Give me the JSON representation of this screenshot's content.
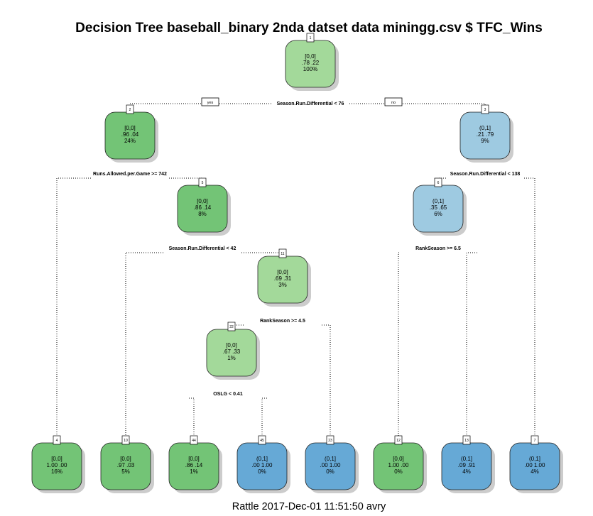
{
  "title": "Decision Tree baseball_binary 2nda datset data miningg.csv $ TFC_Wins",
  "footer": "Rattle 2017-Dec-01 11:51:50 avry",
  "colors": {
    "light_green": "#a3d99a",
    "green": "#73c476",
    "light_blue": "#9ecae1",
    "blue": "#66a9d6",
    "shadow": "#cccccc",
    "edge": "#000000"
  },
  "branch_labels": {
    "yes": "yes",
    "no": "no"
  },
  "nodes": [
    {
      "id": "1",
      "cls": "[0,0]",
      "probs": ".78  .22",
      "pct": "100%",
      "fill": "light_green",
      "split": "Season.Run.Differential < 76"
    },
    {
      "id": "2",
      "cls": "[0,0]",
      "probs": ".96  .04",
      "pct": "24%",
      "fill": "green",
      "split": "Runs.Allowed.per.Game >= 742"
    },
    {
      "id": "3",
      "cls": "(0,1]",
      "probs": ".21  .79",
      "pct": "9%",
      "fill": "light_blue",
      "split": "Season.Run.Differential < 138"
    },
    {
      "id": "5",
      "cls": "[0,0]",
      "probs": ".86  .14",
      "pct": "8%",
      "fill": "green",
      "split": "Season.Run.Differential < 42"
    },
    {
      "id": "6",
      "cls": "(0,1]",
      "probs": ".35  .65",
      "pct": "6%",
      "fill": "light_blue",
      "split": "RankSeason >= 6.5"
    },
    {
      "id": "11",
      "cls": "[0,0]",
      "probs": ".69  .31",
      "pct": "3%",
      "fill": "light_green",
      "split": "RankSeason >= 4.5"
    },
    {
      "id": "22",
      "cls": "[0,0]",
      "probs": ".67  .33",
      "pct": "1%",
      "fill": "light_green",
      "split": "OSLG < 0.41"
    },
    {
      "id": "4",
      "cls": "[0,0]",
      "probs": "1.00  .00",
      "pct": "16%",
      "fill": "green",
      "split": ""
    },
    {
      "id": "10",
      "cls": "[0,0]",
      "probs": ".97  .03",
      "pct": "5%",
      "fill": "green",
      "split": ""
    },
    {
      "id": "44",
      "cls": "[0,0]",
      "probs": ".86  .14",
      "pct": "1%",
      "fill": "green",
      "split": ""
    },
    {
      "id": "45",
      "cls": "(0,1]",
      "probs": ".00  1.00",
      "pct": "0%",
      "fill": "blue",
      "split": ""
    },
    {
      "id": "23",
      "cls": "(0,1]",
      "probs": ".00  1.00",
      "pct": "0%",
      "fill": "blue",
      "split": ""
    },
    {
      "id": "12",
      "cls": "[0,0]",
      "probs": "1.00  .00",
      "pct": "0%",
      "fill": "green",
      "split": ""
    },
    {
      "id": "13",
      "cls": "(0,1]",
      "probs": ".09  .91",
      "pct": "4%",
      "fill": "blue",
      "split": ""
    },
    {
      "id": "7",
      "cls": "(0,1]",
      "probs": ".00  1.00",
      "pct": "4%",
      "fill": "blue",
      "split": ""
    }
  ]
}
